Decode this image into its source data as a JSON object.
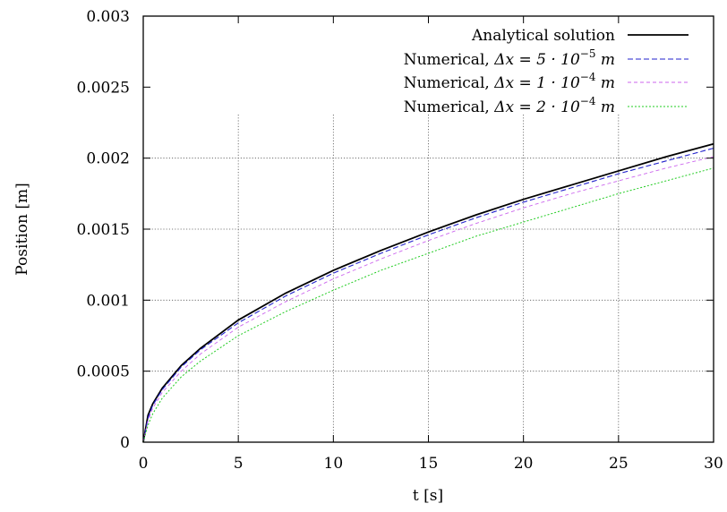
{
  "chart_data": {
    "type": "line",
    "xlabel": "t [s]",
    "ylabel": "Position [m]",
    "xlim": [
      0,
      30
    ],
    "ylim": [
      0,
      0.003
    ],
    "xticks": [
      "0",
      "5",
      "10",
      "15",
      "20",
      "25",
      "30"
    ],
    "yticks": [
      "0",
      "0.0005",
      "0.001",
      "0.0015",
      "0.002",
      "0.0025",
      "0.003"
    ],
    "grid": true,
    "legend_position": "top-right",
    "series": [
      {
        "name": "Analytical solution",
        "legend_prefix": "Analytical solution",
        "legend_math": "",
        "legend_exp": "",
        "legend_unit": "",
        "color": "#000000",
        "dash": "solid",
        "x": [
          0,
          0.25,
          0.5,
          1,
          2,
          3,
          5,
          7.5,
          10,
          12.5,
          15,
          17.5,
          20,
          22.5,
          25,
          27.5,
          30
        ],
        "y": [
          0,
          0.00019,
          0.00027,
          0.00038,
          0.00054,
          0.00066,
          0.00086,
          0.00105,
          0.00121,
          0.00135,
          0.00148,
          0.0016,
          0.00171,
          0.00181,
          0.00191,
          0.00201,
          0.0021
        ]
      },
      {
        "name": "Numerical, Δx = 5 · 10−5 m",
        "legend_prefix": "Numerical, ",
        "legend_math": "Δx = 5 · 10",
        "legend_exp": "−5",
        "legend_unit": "m",
        "color": "#2222cc",
        "dash": "dashed",
        "x": [
          0,
          0.25,
          0.5,
          1,
          2,
          3,
          5,
          7.5,
          10,
          12.5,
          15,
          17.5,
          20,
          22.5,
          25,
          27.5,
          30
        ],
        "y": [
          0,
          0.00017,
          0.00026,
          0.00037,
          0.00053,
          0.00065,
          0.00084,
          0.00103,
          0.00119,
          0.00133,
          0.00146,
          0.00158,
          0.00169,
          0.00179,
          0.00189,
          0.00198,
          0.00207
        ]
      },
      {
        "name": "Numerical, Δx = 1 · 10−4 m",
        "legend_prefix": "Numerical, ",
        "legend_math": "Δx = 1 · 10",
        "legend_exp": "−4",
        "legend_unit": "m",
        "color": "#cc66ee",
        "dash": "dashed-fine",
        "x": [
          0,
          0.25,
          0.5,
          1,
          2,
          3,
          5,
          7.5,
          10,
          12.5,
          15,
          17.5,
          20,
          22.5,
          25,
          27.5,
          30
        ],
        "y": [
          0,
          0.00015,
          0.00024,
          0.00035,
          0.0005,
          0.00062,
          0.00081,
          0.00099,
          0.00115,
          0.00129,
          0.00142,
          0.00154,
          0.00165,
          0.00175,
          0.00184,
          0.00193,
          0.00201
        ]
      },
      {
        "name": "Numerical, Δx = 2 · 10−4 m",
        "legend_prefix": "Numerical, ",
        "legend_math": "Δx = 2 · 10",
        "legend_exp": "−4",
        "legend_unit": "m",
        "color": "#22cc22",
        "dash": "dotted",
        "x": [
          0,
          0.25,
          0.5,
          1,
          2,
          3,
          5,
          7.5,
          10,
          12.5,
          15,
          17.5,
          20,
          22.5,
          25,
          27.5,
          30
        ],
        "y": [
          0,
          0.00012,
          0.0002,
          0.00031,
          0.00046,
          0.00057,
          0.00075,
          0.00092,
          0.00107,
          0.00121,
          0.00133,
          0.00145,
          0.00155,
          0.00165,
          0.00175,
          0.00184,
          0.00193
        ]
      }
    ]
  }
}
